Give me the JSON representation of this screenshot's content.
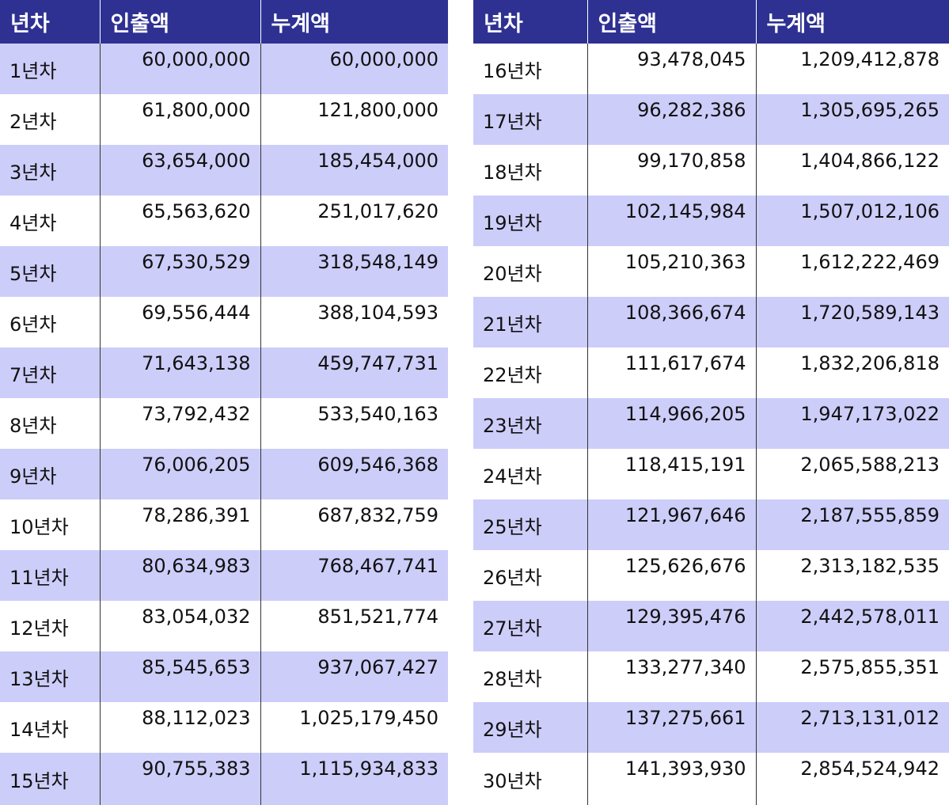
{
  "headers": [
    "년차",
    "인출액",
    "누계액"
  ],
  "left_rows": [
    {
      "year": "1년차",
      "amount": "60,000,000",
      "total": "60,000,000"
    },
    {
      "year": "2년차",
      "amount": "61,800,000",
      "total": "121,800,000"
    },
    {
      "year": "3년차",
      "amount": "63,654,000",
      "total": "185,454,000"
    },
    {
      "year": "4년차",
      "amount": "65,563,620",
      "total": "251,017,620"
    },
    {
      "year": "5년차",
      "amount": "67,530,529",
      "total": "318,548,149"
    },
    {
      "year": "6년차",
      "amount": "69,556,444",
      "total": "388,104,593"
    },
    {
      "year": "7년차",
      "amount": "71,643,138",
      "total": "459,747,731"
    },
    {
      "year": "8년차",
      "amount": "73,792,432",
      "total": "533,540,163"
    },
    {
      "year": "9년차",
      "amount": "76,006,205",
      "total": "609,546,368"
    },
    {
      "year": "10년차",
      "amount": "78,286,391",
      "total": "687,832,759"
    },
    {
      "year": "11년차",
      "amount": "80,634,983",
      "total": "768,467,741"
    },
    {
      "year": "12년차",
      "amount": "83,054,032",
      "total": "851,521,774"
    },
    {
      "year": "13년차",
      "amount": "85,545,653",
      "total": "937,067,427"
    },
    {
      "year": "14년차",
      "amount": "88,112,023",
      "total": "1,025,179,450"
    },
    {
      "year": "15년차",
      "amount": "90,755,383",
      "total": "1,115,934,833"
    }
  ],
  "right_rows": [
    {
      "year": "16년차",
      "amount": "93,478,045",
      "total": "1,209,412,878"
    },
    {
      "year": "17년차",
      "amount": "96,282,386",
      "total": "1,305,695,265"
    },
    {
      "year": "18년차",
      "amount": "99,170,858",
      "total": "1,404,866,122"
    },
    {
      "year": "19년차",
      "amount": "102,145,984",
      "total": "1,507,012,106"
    },
    {
      "year": "20년차",
      "amount": "105,210,363",
      "total": "1,612,222,469"
    },
    {
      "year": "21년차",
      "amount": "108,366,674",
      "total": "1,720,589,143"
    },
    {
      "year": "22년차",
      "amount": "111,617,674",
      "total": "1,832,206,818"
    },
    {
      "year": "23년차",
      "amount": "114,966,205",
      "total": "1,947,173,022"
    },
    {
      "year": "24년차",
      "amount": "118,415,191",
      "total": "2,065,588,213"
    },
    {
      "year": "25년차",
      "amount": "121,967,646",
      "total": "2,187,555,859"
    },
    {
      "year": "26년차",
      "amount": "125,626,676",
      "total": "2,313,182,535"
    },
    {
      "year": "27년차",
      "amount": "129,395,476",
      "total": "2,442,578,011"
    },
    {
      "year": "28년차",
      "amount": "133,277,340",
      "total": "2,575,855,351"
    },
    {
      "year": "29년차",
      "amount": "137,275,661",
      "total": "2,713,131,012"
    },
    {
      "year": "30년차",
      "amount": "141,393,930",
      "total": "2,854,524,942"
    }
  ],
  "colors": {
    "header_bg": "#2e3192",
    "shade_row": "#cdcdfa",
    "header_text": "#ffffff"
  }
}
